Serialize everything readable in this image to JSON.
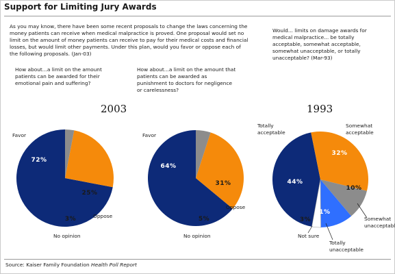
{
  "title": "Support for Limiting Jury Awards",
  "intro": "As you may know, there have been some recent proposals to change the laws concerning the money patients can receive when medical malpractice is proved. One proposal would set no limit on the amount of money patients can receive to pay for their medical costs and financial losses, but would limit other payments. Under this plan, would you favor or oppose each of the following proposals. (Jan-03)",
  "questions": {
    "q1": "How about...a limit on the amount patients can be awarded for their emotional pain and suffering?",
    "q2": "How about...a limit on the amount that patients can be awarded as punishment to doctors for negligence or carelessness?",
    "q3": "Would... limits on damage awards for medical malpractice... be totally acceptable, somewhat acceptable, somewhat unacceptable, or totally unacceptable? (Mar-93)"
  },
  "years": {
    "a": "2003",
    "b": "1993"
  },
  "source": {
    "prefix": "Source: Kaiser Family Foundation ",
    "italic": "Health Poll Report"
  },
  "colors": {
    "favor": "#0d2a78",
    "oppose": "#f58a0b",
    "no_opinion": "#8c8c8c",
    "totally_unacceptable": "#2f6fff",
    "not_sure": "#ffffff",
    "label_light": "#ffffff",
    "label_dark": "#1a1a1a"
  },
  "chart_data": [
    {
      "type": "pie",
      "title": "2003",
      "question": "Limit on awards for emotional pain and suffering",
      "slices": [
        {
          "name": "Favor",
          "value": 72,
          "label": "72%",
          "color": "#0d2a78"
        },
        {
          "name": "Oppose",
          "value": 25,
          "label": "25%",
          "color": "#f58a0b"
        },
        {
          "name": "No opinion",
          "value": 3,
          "label": "3%",
          "color": "#8c8c8c"
        }
      ]
    },
    {
      "type": "pie",
      "title": "2003",
      "question": "Limit on awards as punishment to doctors",
      "slices": [
        {
          "name": "Favor",
          "value": 64,
          "label": "64%",
          "color": "#0d2a78"
        },
        {
          "name": "Oppose",
          "value": 31,
          "label": "31%",
          "color": "#f58a0b"
        },
        {
          "name": "No opinion",
          "value": 5,
          "label": "5%",
          "color": "#8c8c8c"
        }
      ]
    },
    {
      "type": "pie",
      "title": "1993",
      "question": "Limits on damage awards for medical malpractice",
      "slices": [
        {
          "name": "Totally acceptable",
          "value": 44,
          "label": "44%",
          "color": "#0d2a78"
        },
        {
          "name": "Somewhat acceptable",
          "value": 32,
          "label": "32%",
          "color": "#f58a0b"
        },
        {
          "name": "Somewhat unacceptable",
          "value": 10,
          "label": "10%",
          "color": "#8c8c8c"
        },
        {
          "name": "Totally unacceptable",
          "value": 11,
          "label": "11%",
          "color": "#2f6fff"
        },
        {
          "name": "Not sure",
          "value": 3,
          "label": "3%",
          "color": "#ffffff"
        }
      ]
    }
  ]
}
